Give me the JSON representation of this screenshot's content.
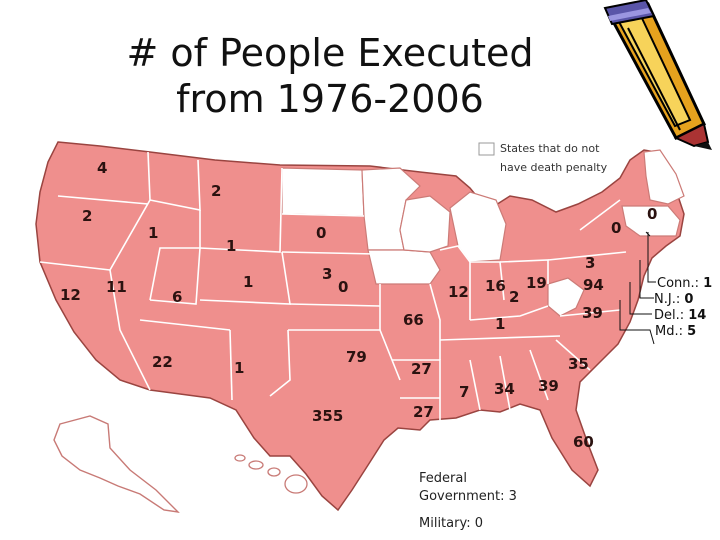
{
  "title_line1": "# of People Executed",
  "title_line2": "from 1976-2006",
  "colors": {
    "death_penalty_state": "#ef8f8d",
    "no_death_penalty_state": "#ffffff",
    "state_border": "#ffffff",
    "map_outline": "#9a4440",
    "label_text": "#2b1210"
  },
  "legend": {
    "line1": "States that do not",
    "line2": "have death penalty"
  },
  "states": [
    {
      "name": "Washington",
      "value": "4"
    },
    {
      "name": "Oregon",
      "value": "2"
    },
    {
      "name": "California",
      "value": "12"
    },
    {
      "name": "Nevada",
      "value": "11"
    },
    {
      "name": "Idaho",
      "value": "1"
    },
    {
      "name": "Montana",
      "value": "2"
    },
    {
      "name": "Wyoming",
      "value": "1"
    },
    {
      "name": "Utah",
      "value": "6"
    },
    {
      "name": "Colorado",
      "value": "1"
    },
    {
      "name": "Arizona",
      "value": "22"
    },
    {
      "name": "New Mexico",
      "value": "1"
    },
    {
      "name": "South Dakota",
      "value": "0"
    },
    {
      "name": "Nebraska",
      "value": "3"
    },
    {
      "name": "Kansas",
      "value": "0"
    },
    {
      "name": "Oklahoma",
      "value": "79"
    },
    {
      "name": "Texas",
      "value": "355"
    },
    {
      "name": "Missouri",
      "value": "66"
    },
    {
      "name": "Arkansas",
      "value": "27"
    },
    {
      "name": "Louisiana",
      "value": "27"
    },
    {
      "name": "Illinois",
      "value": "12"
    },
    {
      "name": "Indiana",
      "value": "16"
    },
    {
      "name": "Ohio",
      "value": "19"
    },
    {
      "name": "Kentucky",
      "value": "2"
    },
    {
      "name": "Tennessee",
      "value": "1"
    },
    {
      "name": "Mississippi",
      "value": "7"
    },
    {
      "name": "Alabama",
      "value": "34"
    },
    {
      "name": "Georgia",
      "value": "39"
    },
    {
      "name": "Florida",
      "value": "60"
    },
    {
      "name": "South Carolina",
      "value": "35"
    },
    {
      "name": "North Carolina",
      "value": "39"
    },
    {
      "name": "Virginia",
      "value": "94"
    },
    {
      "name": "Pennsylvania",
      "value": "3"
    },
    {
      "name": "New York",
      "value": "0"
    },
    {
      "name": "New Hampshire",
      "value": "0"
    }
  ],
  "callouts": [
    {
      "label": "Conn.: ",
      "value": "1"
    },
    {
      "label": "N.J.: ",
      "value": "0"
    },
    {
      "label": "Del.: ",
      "value": "14"
    },
    {
      "label": "Md.: ",
      "value": "5"
    }
  ],
  "federal_line1": "Federal",
  "federal_line2": "Government: 3",
  "military": "Military: 0",
  "decoration": "pencil-clipart"
}
